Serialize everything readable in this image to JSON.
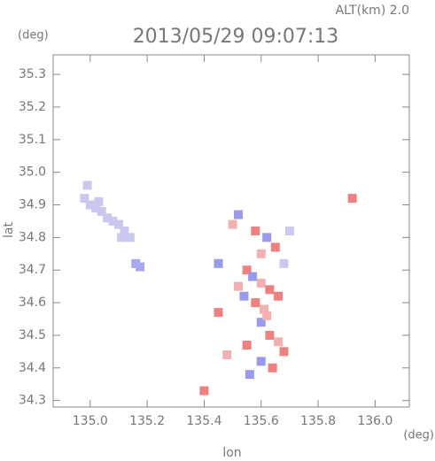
{
  "chart_data": {
    "type": "scatter",
    "title": "2013/05/29 09:07:13",
    "subtitle": "ALT(km) 2.0",
    "y_unit": "(deg)",
    "x_unit": "(deg)",
    "xlabel": "lon",
    "ylabel": "lat",
    "xlim": [
      134.87,
      136.12
    ],
    "ylim": [
      34.28,
      35.36
    ],
    "xticks": [
      {
        "value": 135,
        "label": "135.0"
      },
      135.2,
      135.4,
      135.6,
      135.8,
      {
        "value": 136,
        "label": "136.0"
      }
    ],
    "yticks": [
      34.3,
      34.4,
      34.5,
      34.6,
      34.7,
      34.8,
      34.9,
      {
        "value": 35,
        "label": "35.0"
      },
      35.1,
      35.2,
      35.3
    ],
    "x": [
      134.99,
      134.98,
      135.0,
      135.02,
      135.04,
      135.06,
      135.08,
      135.1,
      135.12,
      135.14,
      135.11,
      135.03,
      135.16,
      135.175,
      135.52,
      135.5,
      135.58,
      135.62,
      135.6,
      135.65,
      135.68,
      135.55,
      135.57,
      135.6,
      135.63,
      135.52,
      135.54,
      135.58,
      135.61,
      135.66,
      135.6,
      135.63,
      135.66,
      135.68,
      135.55,
      135.6,
      135.64,
      135.48,
      135.45,
      135.4,
      135.92,
      135.45,
      135.7,
      135.56,
      135.62
    ],
    "y": [
      34.96,
      34.92,
      34.9,
      34.89,
      34.88,
      34.86,
      34.85,
      34.84,
      34.82,
      34.8,
      34.8,
      34.91,
      34.72,
      34.71,
      34.87,
      34.84,
      34.82,
      34.8,
      34.75,
      34.77,
      34.72,
      34.7,
      34.68,
      34.66,
      34.64,
      34.65,
      34.62,
      34.6,
      34.58,
      34.62,
      34.54,
      34.5,
      34.48,
      34.45,
      34.47,
      34.42,
      34.4,
      34.44,
      34.57,
      34.33,
      34.92,
      34.72,
      34.82,
      34.38,
      34.56
    ],
    "colors": [
      "#c8c8f0",
      "#c8c8f0",
      "#c8c8f0",
      "#c8c8f0",
      "#c8c8f0",
      "#c8c8f0",
      "#c8c8f0",
      "#c8c8f0",
      "#c8c8f0",
      "#c8c8f0",
      "#c8c8f0",
      "#c8c8f0",
      "#a8a8ee",
      "#a8a8ee",
      "#9999ee",
      "#f4b0b0",
      "#f08080",
      "#9999ee",
      "#f4b0b0",
      "#f08080",
      "#c8c8f0",
      "#f08080",
      "#9999ee",
      "#f4b0b0",
      "#f08080",
      "#f4b0b0",
      "#9999ee",
      "#f08080",
      "#f4b0b0",
      "#f08080",
      "#9999ee",
      "#f08080",
      "#f4b0b0",
      "#f08080",
      "#f08080",
      "#9999ee",
      "#f08080",
      "#f4b0b0",
      "#f08080",
      "#f08080",
      "#f08080",
      "#9999ee",
      "#c8c8f0",
      "#9999ee",
      "#f4b0b0"
    ]
  }
}
